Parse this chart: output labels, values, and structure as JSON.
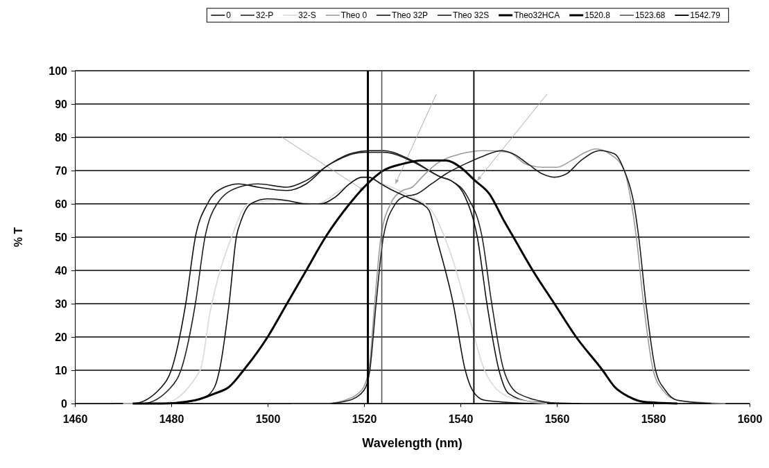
{
  "chart_data": {
    "type": "line",
    "xlabel": "Wavelength (nm)",
    "ylabel": "% T",
    "xlim": [
      1460,
      1600
    ],
    "xticks": [
      1460,
      1480,
      1500,
      1520,
      1540,
      1560,
      1580,
      1600
    ],
    "ylim": [
      0,
      100
    ],
    "yticks": [
      0,
      10,
      20,
      30,
      40,
      50,
      60,
      70,
      80,
      90,
      100
    ],
    "grid": "y",
    "legend": "top",
    "marker": "none",
    "line_style": "solid",
    "series": [
      {
        "name": "0",
        "color": "#111111",
        "x": [
          1468,
          1472,
          1478,
          1480,
          1483,
          1485,
          1487.5,
          1491,
          1494,
          1498,
          1504,
          1508,
          1512,
          1517,
          1521,
          1524,
          1530,
          1536,
          1538,
          1541,
          1543.5,
          1545.5,
          1548,
          1550,
          1555,
          1565
        ],
        "values": [
          0,
          0,
          5,
          10,
          30,
          50,
          60,
          65,
          66,
          65,
          64,
          66,
          71,
          75,
          76,
          76,
          73,
          68,
          67,
          62,
          50,
          30,
          10,
          3,
          0.5,
          0
        ]
      },
      {
        "name": "32-P",
        "color": "#222222",
        "x": [
          1468,
          1474,
          1480,
          1482,
          1485,
          1487,
          1489.5,
          1494,
          1498,
          1504,
          1508,
          1513,
          1520,
          1524,
          1531,
          1536,
          1538,
          1541.5,
          1544.5,
          1546.5,
          1549,
          1552,
          1560
        ],
        "values": [
          0,
          0,
          5,
          10,
          30,
          50,
          60,
          65,
          66,
          65,
          67,
          72,
          75.5,
          75.5,
          72,
          68,
          67,
          62,
          50,
          30,
          10,
          3,
          0
        ]
      },
      {
        "name": "32-S",
        "color": "#d8d8d8",
        "x": [
          1470,
          1478,
          1486,
          1488,
          1492.5,
          1496,
          1502,
          1510,
          1515,
          1520,
          1524,
          1530,
          1534,
          1538,
          1542,
          1545,
          1550,
          1558
        ],
        "values": [
          0,
          0,
          10,
          27,
          50,
          60,
          61,
          60,
          64,
          68,
          66,
          62,
          58,
          45,
          25,
          10,
          2,
          0
        ]
      },
      {
        "name": "Theo 0",
        "color": "#9a9a9a",
        "x": [
          1505,
          1512,
          1516,
          1519.5,
          1521,
          1522.2,
          1523.5,
          1525.5,
          1528,
          1530,
          1532,
          1535,
          1540,
          1545,
          1550,
          1553.5,
          1557,
          1560,
          1563,
          1566,
          1568,
          1571,
          1574,
          1575.5,
          1576.5,
          1578,
          1580,
          1582,
          1585,
          1595
        ],
        "values": [
          0,
          0,
          1,
          4,
          10,
          30,
          50,
          60,
          64,
          65,
          68,
          72,
          75,
          76,
          75.5,
          72,
          71,
          71,
          73,
          75.5,
          76.5,
          75,
          70,
          60,
          50,
          30,
          10,
          4,
          1,
          0
        ]
      },
      {
        "name": "Theo 32P",
        "color": "#111111",
        "x": [
          1476,
          1480,
          1487,
          1489,
          1490,
          1492,
          1493.5,
          1494.5,
          1496.5,
          1500,
          1504,
          1508,
          1511,
          1514,
          1517,
          1519.5,
          1521,
          1523.5,
          1526,
          1529,
          1532,
          1533.5,
          1535,
          1538.5,
          1541,
          1542.5,
          1545,
          1555
        ],
        "values": [
          0,
          0,
          2,
          5,
          10,
          30,
          50,
          55,
          60,
          61.5,
          61,
          60,
          60,
          62,
          66,
          68,
          68,
          66,
          64,
          62,
          60,
          58,
          50,
          30,
          10,
          4,
          1,
          0
        ]
      },
      {
        "name": "Theo 32S",
        "color": "#1a1a1a",
        "x": [
          1505,
          1512,
          1517,
          1520,
          1521.2,
          1522.5,
          1524,
          1526.5,
          1528,
          1531,
          1534,
          1537,
          1541,
          1545,
          1548.5,
          1551,
          1554,
          1557,
          1559.5,
          1562,
          1565,
          1569,
          1572,
          1574,
          1576,
          1577,
          1578.5,
          1580.5,
          1582.5,
          1585,
          1592
        ],
        "values": [
          0,
          0,
          1,
          4,
          10,
          30,
          50,
          60,
          62,
          63,
          66,
          69,
          72,
          74.5,
          76,
          75,
          72,
          69,
          68,
          69,
          73,
          76,
          75,
          70,
          60,
          50,
          30,
          10,
          4,
          1,
          0
        ]
      },
      {
        "name": "Theo32HCA",
        "color": "#000000",
        "x": [
          1472,
          1478,
          1485,
          1489,
          1492,
          1495,
          1500,
          1504,
          1508,
          1512,
          1517,
          1520,
          1524,
          1528,
          1532,
          1537,
          1540,
          1543,
          1546,
          1549,
          1551,
          1555,
          1559.5,
          1564,
          1569.5,
          1572,
          1575,
          1578,
          1585
        ],
        "values": [
          0,
          0,
          1,
          3,
          5,
          10,
          20,
          30,
          40,
          50,
          60,
          65,
          70,
          72,
          73,
          73,
          71,
          67,
          63,
          55,
          50,
          40,
          30,
          20,
          10,
          5,
          2,
          0.5,
          0
        ]
      },
      {
        "name": "1520.8",
        "color": "#000000",
        "x": [
          1520.8,
          1520.8
        ],
        "values": [
          0,
          100
        ]
      },
      {
        "name": "1523.68",
        "color": "#555555",
        "x": [
          1523.68,
          1523.68
        ],
        "values": [
          0,
          100
        ]
      },
      {
        "name": "1542.79",
        "color": "#111111",
        "x": [
          1542.79,
          1542.79
        ],
        "values": [
          0,
          100
        ]
      }
    ]
  }
}
